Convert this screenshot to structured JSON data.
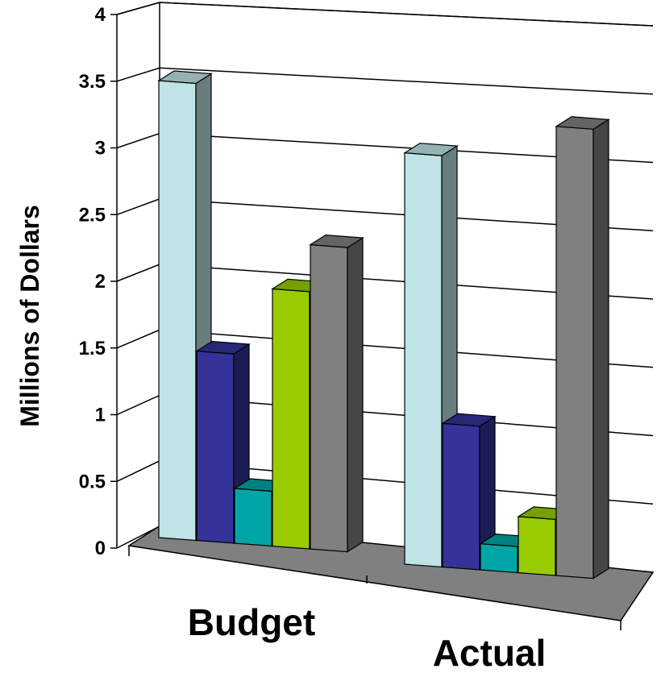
{
  "chart_data": {
    "type": "bar",
    "title": "",
    "xlabel": "",
    "ylabel": "Millions of Dollars",
    "ylim": [
      0,
      4
    ],
    "yticks": [
      "0",
      "0.5",
      "1",
      "1.5",
      "2",
      "2.5",
      "3",
      "3.5",
      "4"
    ],
    "categories": [
      "Budget",
      "Actual"
    ],
    "grid": true,
    "legend": "none",
    "style": "3d-clustered-column",
    "series": [
      {
        "values": [
          3.5,
          3.15
        ],
        "color": "#bfe3e6"
      },
      {
        "values": [
          1.45,
          1.1
        ],
        "color": "#33339a"
      },
      {
        "values": [
          0.42,
          0.2
        ],
        "color": "#00a6a6"
      },
      {
        "values": [
          1.97,
          0.43
        ],
        "color": "#99cc00"
      },
      {
        "values": [
          2.33,
          3.44
        ],
        "color": "#808080"
      }
    ]
  }
}
